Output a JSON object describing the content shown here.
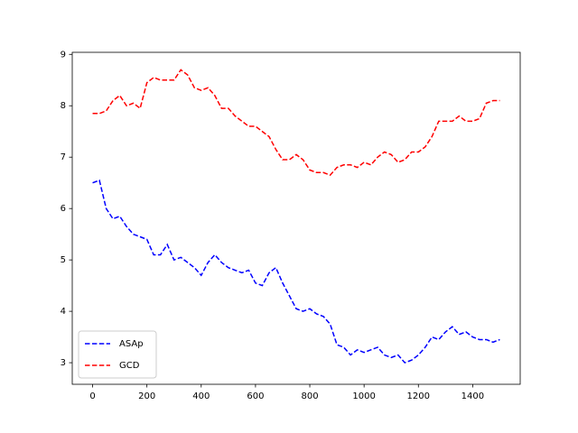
{
  "chart_data": {
    "type": "line",
    "x": [
      0,
      25,
      50,
      75,
      100,
      125,
      150,
      175,
      200,
      225,
      250,
      275,
      300,
      325,
      350,
      375,
      400,
      425,
      450,
      475,
      500,
      525,
      550,
      575,
      600,
      625,
      650,
      675,
      700,
      725,
      750,
      775,
      800,
      825,
      850,
      875,
      900,
      925,
      950,
      975,
      1000,
      1025,
      1050,
      1075,
      1100,
      1125,
      1150,
      1175,
      1200,
      1225,
      1250,
      1275,
      1300,
      1325,
      1350,
      1375,
      1400,
      1425,
      1450,
      1475,
      1500
    ],
    "series": [
      {
        "name": "ASAp",
        "color": "blue",
        "values": [
          6.5,
          6.55,
          6.0,
          5.8,
          5.85,
          5.65,
          5.5,
          5.45,
          5.4,
          5.1,
          5.1,
          5.3,
          5.0,
          5.05,
          4.95,
          4.85,
          4.7,
          4.95,
          5.1,
          4.95,
          4.85,
          4.8,
          4.75,
          4.8,
          4.55,
          4.5,
          4.75,
          4.85,
          4.55,
          4.3,
          4.05,
          4.0,
          4.05,
          3.95,
          3.9,
          3.75,
          3.35,
          3.3,
          3.15,
          3.25,
          3.2,
          3.25,
          3.3,
          3.15,
          3.1,
          3.15,
          3.0,
          3.05,
          3.15,
          3.3,
          3.5,
          3.45,
          3.6,
          3.7,
          3.55,
          3.6,
          3.5,
          3.45,
          3.45,
          3.4,
          3.45
        ]
      },
      {
        "name": "GCD",
        "color": "red",
        "values": [
          7.85,
          7.85,
          7.9,
          8.1,
          8.2,
          8.0,
          8.05,
          7.95,
          8.45,
          8.55,
          8.5,
          8.5,
          8.5,
          8.7,
          8.6,
          8.35,
          8.3,
          8.35,
          8.2,
          7.95,
          7.95,
          7.8,
          7.7,
          7.6,
          7.6,
          7.5,
          7.4,
          7.15,
          6.95,
          6.95,
          7.05,
          6.95,
          6.75,
          6.7,
          6.7,
          6.65,
          6.8,
          6.85,
          6.85,
          6.8,
          6.9,
          6.85,
          7.0,
          7.1,
          7.05,
          6.9,
          6.95,
          7.1,
          7.1,
          7.2,
          7.4,
          7.7,
          7.7,
          7.7,
          7.8,
          7.7,
          7.7,
          7.75,
          8.05,
          8.1,
          8.1
        ]
      }
    ],
    "xlim": [
      -75,
      1575
    ],
    "ylim": [
      2.58,
      9.04
    ],
    "xticks": [
      0,
      200,
      400,
      600,
      800,
      1000,
      1200,
      1400
    ],
    "yticks": [
      3,
      4,
      5,
      6,
      7,
      8,
      9
    ],
    "legend": "lower left",
    "line_style": "dashed"
  }
}
